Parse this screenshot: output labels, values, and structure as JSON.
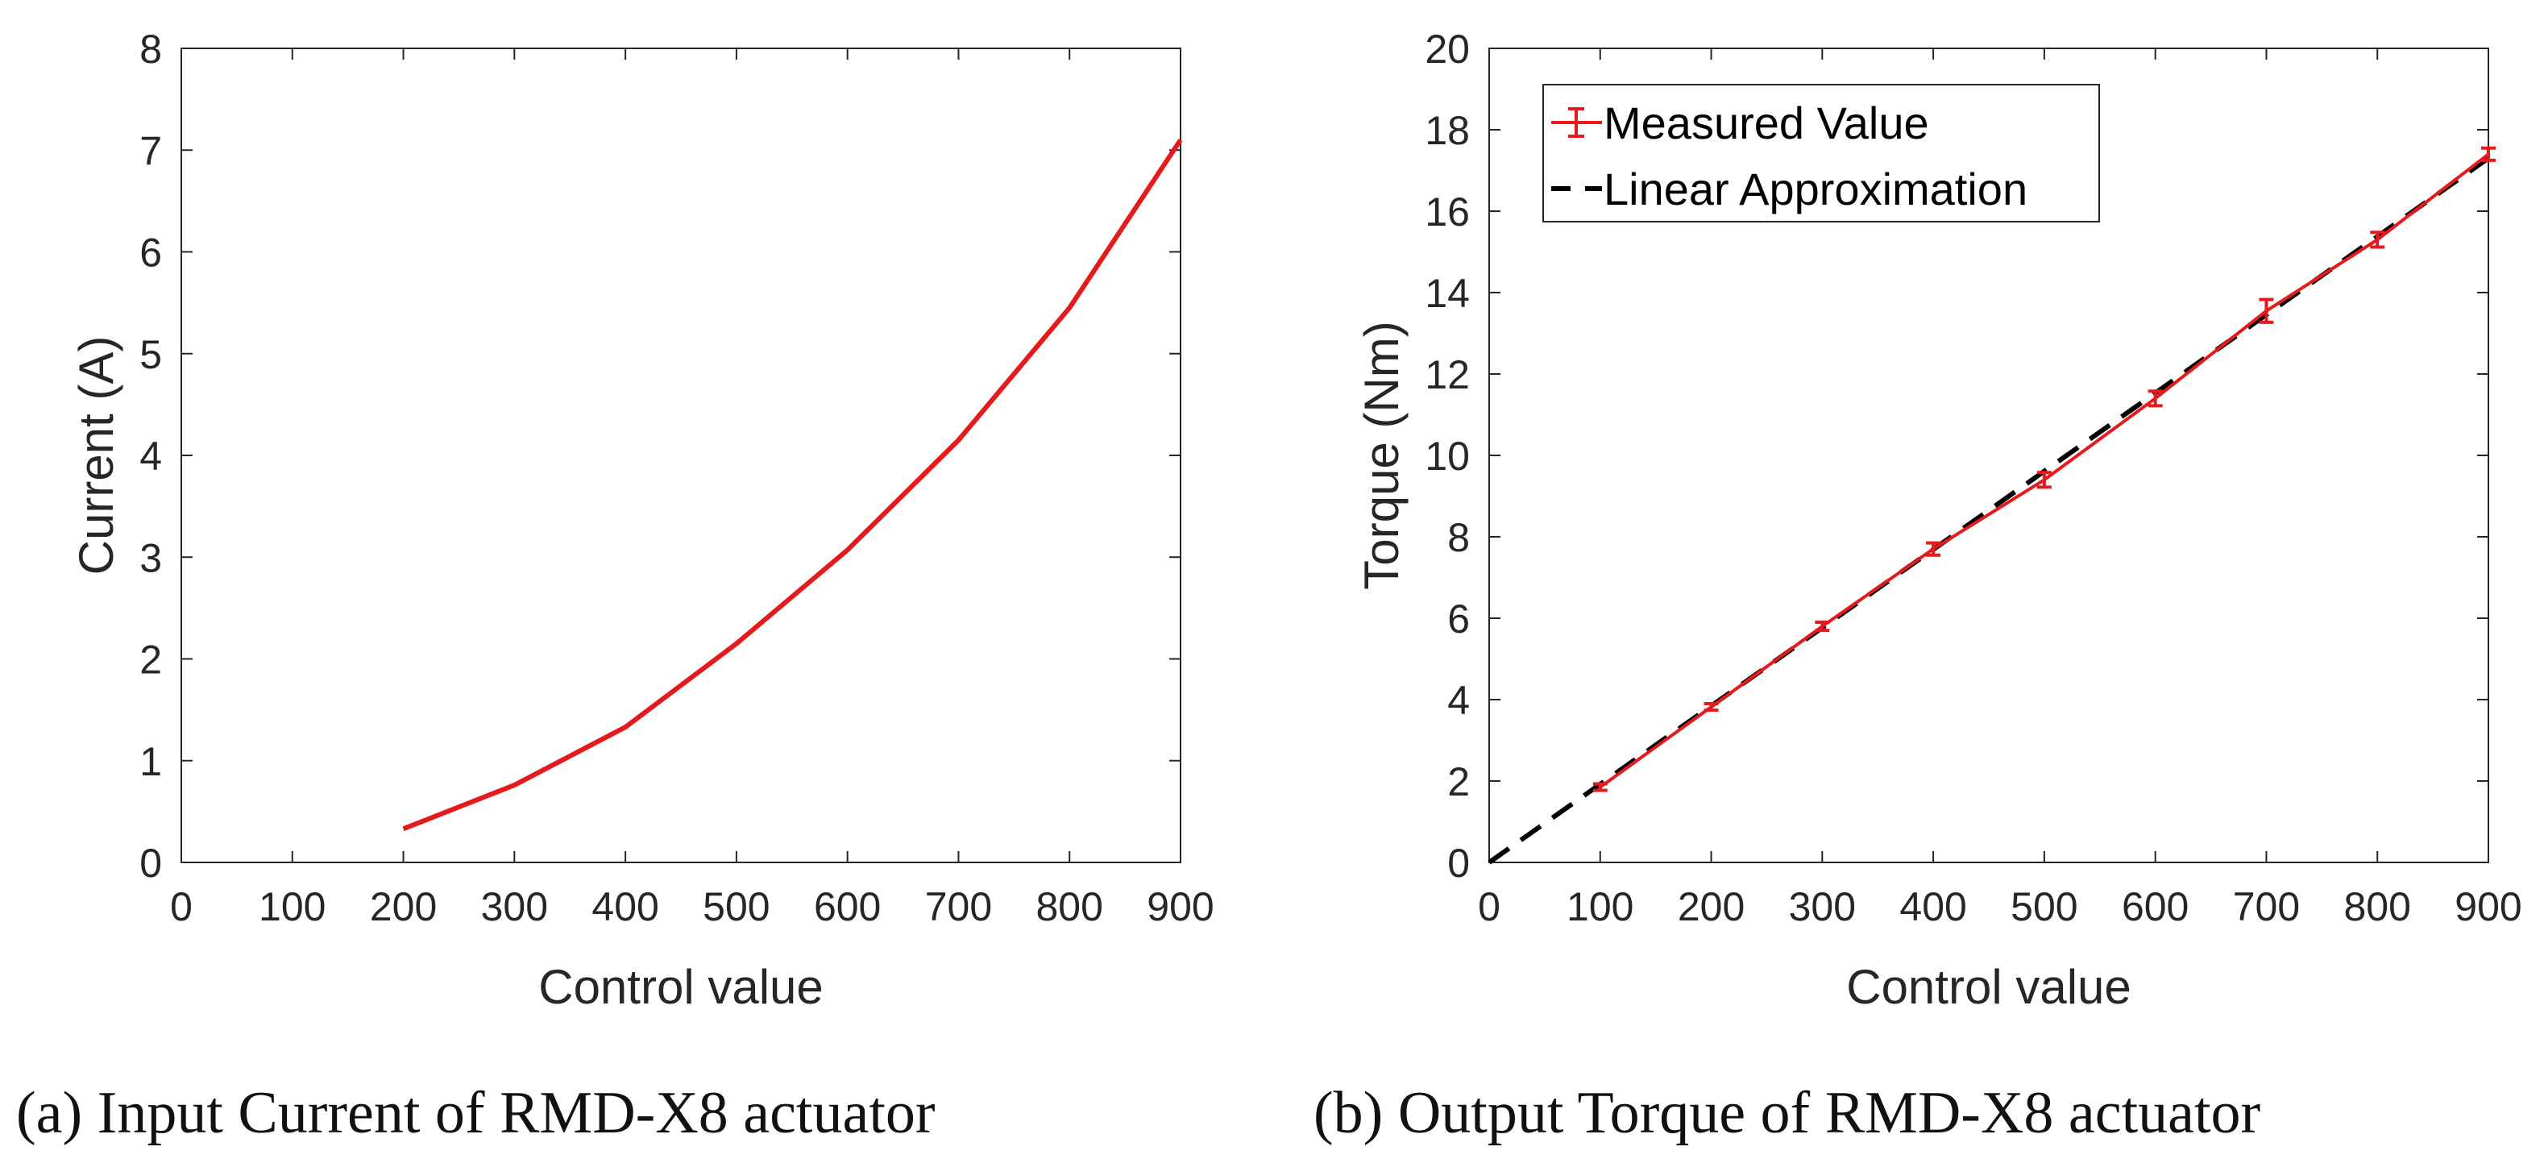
{
  "colors": {
    "measured": "#e41a1c",
    "linear": "#000000",
    "axis": "#262626"
  },
  "chart_data": [
    {
      "type": "line",
      "title": "",
      "xlabel": "Control value",
      "ylabel": "Current (A)",
      "xlim": [
        0,
        900
      ],
      "ylim": [
        0,
        8
      ],
      "xticks": [
        "0",
        "100",
        "200",
        "300",
        "400",
        "500",
        "600",
        "700",
        "800",
        "900"
      ],
      "yticks": [
        "0",
        "1",
        "2",
        "3",
        "4",
        "5",
        "6",
        "7",
        "8"
      ],
      "series": [
        {
          "name": "Current",
          "x": [
            200,
            300,
            400,
            500,
            600,
            700,
            800,
            900
          ],
          "y": [
            0.33,
            0.76,
            1.33,
            2.15,
            3.07,
            4.15,
            5.45,
            7.1
          ]
        }
      ],
      "caption_label": "a",
      "caption_text": " Input Current of RMD-X8 actuator"
    },
    {
      "type": "line",
      "title": "",
      "xlabel": "Control value",
      "ylabel": "Torque (Nm)",
      "xlim": [
        0,
        900
      ],
      "ylim": [
        0,
        20
      ],
      "xticks": [
        "0",
        "100",
        "200",
        "300",
        "400",
        "500",
        "600",
        "700",
        "800",
        "900"
      ],
      "yticks": [
        "0",
        "2",
        "4",
        "6",
        "8",
        "10",
        "12",
        "14",
        "16",
        "18",
        "20"
      ],
      "series": [
        {
          "name": "Measured Value",
          "x": [
            100,
            200,
            300,
            400,
            500,
            600,
            700,
            800,
            900
          ],
          "y": [
            1.85,
            3.82,
            5.8,
            7.7,
            9.4,
            11.4,
            13.55,
            15.3,
            17.4
          ],
          "err": [
            0.08,
            0.08,
            0.1,
            0.15,
            0.18,
            0.18,
            0.28,
            0.18,
            0.15
          ]
        },
        {
          "name": "Linear Approximation",
          "x": [
            0,
            900
          ],
          "y": [
            0,
            17.3
          ]
        }
      ],
      "legend": [
        "Measured Value",
        "Linear Approximation"
      ],
      "legend_position": "top-left",
      "caption_label": "b",
      "caption_text": " Output Torque of RMD-X8 actuator"
    }
  ]
}
